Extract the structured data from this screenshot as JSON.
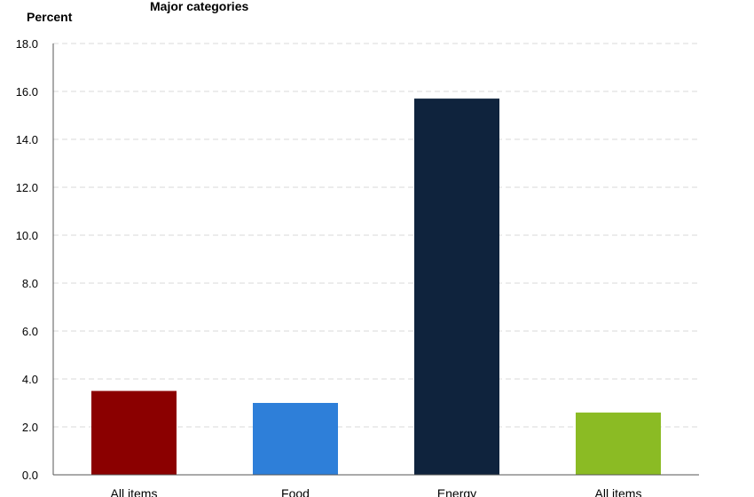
{
  "chart_data": {
    "type": "bar",
    "title": "Major categories",
    "ylabel": "Percent",
    "xlabel": "",
    "ylim": [
      0,
      18
    ],
    "yticks": [
      "0.0",
      "2.0",
      "4.0",
      "6.0",
      "8.0",
      "10.0",
      "12.0",
      "14.0",
      "16.0",
      "18.0"
    ],
    "grid": true,
    "categories": [
      "All items",
      "Food",
      "Energy",
      "All items"
    ],
    "values": [
      3.5,
      3.0,
      15.7,
      2.6
    ],
    "colors": [
      "#8b0000",
      "#2e7fd9",
      "#0f233d",
      "#8bbb24"
    ]
  }
}
